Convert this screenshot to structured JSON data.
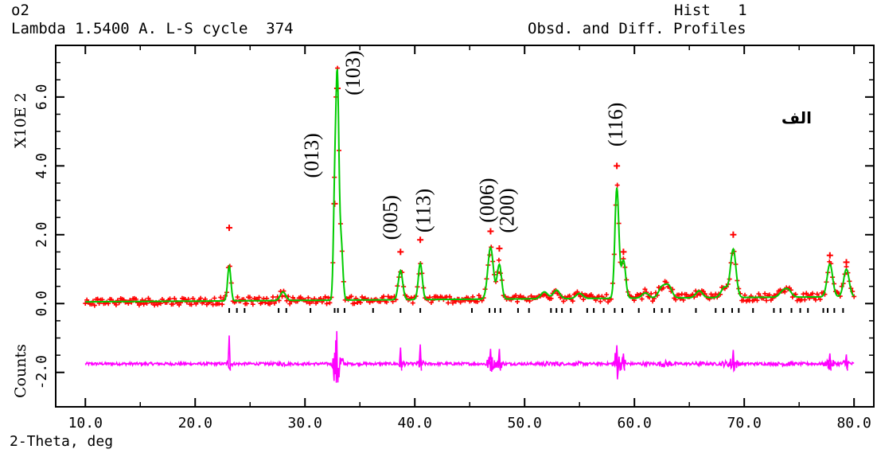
{
  "header": {
    "name": "o2",
    "lambda_line": "Lambda 1.5400 A. L-S cycle  374",
    "hist_line": "Hist   1",
    "profiles_line": "Obsd. and Diff. Profiles"
  },
  "chart_data": {
    "type": "line",
    "xlabel": "2-Theta, deg",
    "ylabel_scale": "X10E  2",
    "ylabel_lower": "Counts",
    "xlim": [
      7.3,
      81.8
    ],
    "ylim": [
      -3.0,
      7.5
    ],
    "x_ticks": [
      10.0,
      20.0,
      30.0,
      40.0,
      50.0,
      60.0,
      70.0,
      80.0
    ],
    "x_tick_labels": [
      "10.0",
      "20.0",
      "30.0",
      "40.0",
      "50.0",
      "60.0",
      "70.0",
      "80.0"
    ],
    "y_ticks": [
      -2.0,
      0.0,
      2.0,
      4.0,
      6.0
    ],
    "y_tick_labels": [
      "-2.0",
      "0.0",
      "2.0",
      "4.0",
      "6.0"
    ],
    "panel_label": "الف",
    "observed_color": "#ff0000",
    "calculated_color": "#00cc00",
    "difference_color": "#ff00ff",
    "reflection_color": "#000000",
    "difference_offset": -1.75,
    "peaks": [
      {
        "x": 23.1,
        "h": 1.0,
        "w": 0.15,
        "obs": 2.2
      },
      {
        "x": 28.0,
        "h": 0.25,
        "w": 0.25
      },
      {
        "x": 32.7,
        "h": 2.7,
        "w": 0.12,
        "obs": 2.9
      },
      {
        "x": 32.95,
        "h": 6.3,
        "w": 0.14,
        "obs": 6.25
      },
      {
        "x": 33.3,
        "h": 1.6,
        "w": 0.15
      },
      {
        "x": 38.7,
        "h": 0.85,
        "w": 0.2,
        "obs": 1.5
      },
      {
        "x": 40.5,
        "h": 1.05,
        "w": 0.18,
        "obs": 1.85
      },
      {
        "x": 46.9,
        "h": 1.5,
        "w": 0.25,
        "obs": 2.1
      },
      {
        "x": 47.7,
        "h": 1.0,
        "w": 0.2,
        "obs": 1.6
      },
      {
        "x": 51.8,
        "h": 0.2,
        "w": 0.3
      },
      {
        "x": 52.9,
        "h": 0.25,
        "w": 0.3
      },
      {
        "x": 55.0,
        "h": 0.15,
        "w": 0.3
      },
      {
        "x": 58.4,
        "h": 3.2,
        "w": 0.18,
        "obs": 4.0
      },
      {
        "x": 59.0,
        "h": 1.1,
        "w": 0.2,
        "obs": 1.5
      },
      {
        "x": 61.0,
        "h": 0.15,
        "w": 0.3
      },
      {
        "x": 62.5,
        "h": 0.3,
        "w": 0.3
      },
      {
        "x": 63.1,
        "h": 0.35,
        "w": 0.3
      },
      {
        "x": 65.9,
        "h": 0.2,
        "w": 0.3
      },
      {
        "x": 68.2,
        "h": 0.3,
        "w": 0.3
      },
      {
        "x": 69.0,
        "h": 1.4,
        "w": 0.25,
        "obs": 2.0
      },
      {
        "x": 73.5,
        "h": 0.15,
        "w": 0.3
      },
      {
        "x": 74.0,
        "h": 0.2,
        "w": 0.3
      },
      {
        "x": 77.8,
        "h": 0.95,
        "w": 0.25,
        "obs": 1.4
      },
      {
        "x": 79.3,
        "h": 0.8,
        "w": 0.25,
        "obs": 1.2
      }
    ],
    "reflections": [
      23.1,
      23.8,
      24.5,
      27.6,
      28.3,
      30.5,
      32.7,
      33.0,
      33.6,
      36.2,
      38.7,
      40.5,
      45.2,
      46.8,
      47.3,
      47.8,
      49.4,
      50.4,
      52.4,
      52.9,
      53.4,
      54.2,
      55.7,
      56.3,
      57.2,
      58.2,
      58.9,
      60.4,
      61.8,
      62.5,
      63.2,
      65.6,
      67.4,
      68.1,
      68.9,
      69.5,
      70.8,
      72.7,
      73.3,
      74.3,
      75.1,
      75.8,
      77.2,
      77.6,
      78.2,
      79.0
    ],
    "annotations": [
      {
        "text": "(013)",
        "x": 31.2,
        "y": 4.3
      },
      {
        "text": "(103)",
        "x": 35.0,
        "y": 6.7
      },
      {
        "text": "(005)",
        "x": 38.4,
        "y": 2.5
      },
      {
        "text": "(113)",
        "x": 41.4,
        "y": 2.7
      },
      {
        "text": "(006)",
        "x": 47.2,
        "y": 3.0
      },
      {
        "text": "(200)",
        "x": 49.0,
        "y": 2.7
      },
      {
        "text": "(116)",
        "x": 58.9,
        "y": 5.2
      }
    ]
  }
}
